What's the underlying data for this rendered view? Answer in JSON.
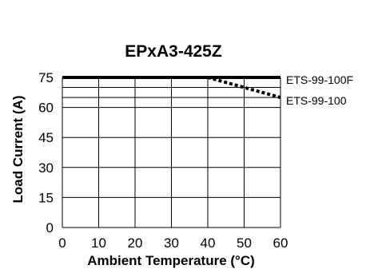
{
  "chart_data": {
    "type": "line",
    "title": "EPxA3-425Z",
    "xlabel": "Ambient Temperature (°C)",
    "ylabel": "Load Current (A)",
    "xlim": [
      0,
      60
    ],
    "ylim": [
      0,
      75
    ],
    "x_ticks": [
      "0",
      "10",
      "20",
      "30",
      "40",
      "50",
      "60"
    ],
    "y_ticks": [
      "0",
      "15",
      "30",
      "45",
      "60",
      "75"
    ],
    "x_tick_values": [
      0,
      10,
      20,
      30,
      40,
      50,
      60
    ],
    "y_tick_values": [
      0,
      15,
      30,
      45,
      60,
      75
    ],
    "extra_y_gridlines": [
      65,
      70
    ],
    "grid": true,
    "series": [
      {
        "name": "ETS-99-100F",
        "style": "solid",
        "color": "#000000",
        "x": [
          0,
          60
        ],
        "y": [
          75,
          75
        ]
      },
      {
        "name": "ETS-99-100",
        "style": "dotted",
        "color": "#000000",
        "x": [
          0,
          40,
          60
        ],
        "y": [
          75,
          75,
          65
        ]
      }
    ]
  }
}
